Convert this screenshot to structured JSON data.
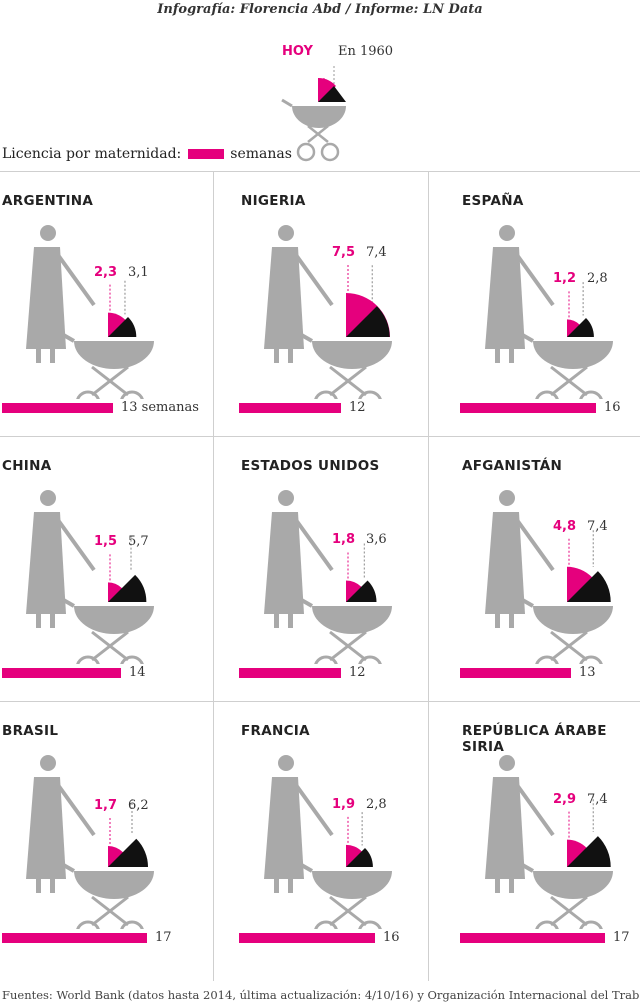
{
  "credit": "Infografía: Florencia Abd / Informe: LN Data",
  "legend": {
    "hoy": "HOY",
    "en_1960": "En 1960",
    "maternity_label": "Licencia por maternidad:",
    "weeks_label": "semanas"
  },
  "colors": {
    "accent": "#e5007d",
    "old": "#111111",
    "figure": "#a9a9a9"
  },
  "countries": [
    {
      "name": "ARGENTINA",
      "hoy": "2,3",
      "y1960": "3,1",
      "weeks": 13,
      "weeks_label": "13 semanas"
    },
    {
      "name": "NIGERIA",
      "hoy": "7,5",
      "y1960": "7,4",
      "weeks": 12,
      "weeks_label": "12"
    },
    {
      "name": "ESPAÑA",
      "hoy": "1,2",
      "y1960": "2,8",
      "weeks": 16,
      "weeks_label": "16"
    },
    {
      "name": "CHINA",
      "hoy": "1,5",
      "y1960": "5,7",
      "weeks": 14,
      "weeks_label": "14"
    },
    {
      "name": "ESTADOS UNIDOS",
      "hoy": "1,8",
      "y1960": "3,6",
      "weeks": 12,
      "weeks_label": "12"
    },
    {
      "name": "AFGANISTÁN",
      "hoy": "4,8",
      "y1960": "7,4",
      "weeks": 13,
      "weeks_label": "13"
    },
    {
      "name": "BRASIL",
      "hoy": "1,7",
      "y1960": "6,2",
      "weeks": 17,
      "weeks_label": "17"
    },
    {
      "name": "FRANCIA",
      "hoy": "1,9",
      "y1960": "2,8",
      "weeks": 16,
      "weeks_label": "16"
    },
    {
      "name": "REPÚBLICA ÁRABE SIRIA",
      "hoy": "2,9",
      "y1960": "7,4",
      "weeks": 17,
      "weeks_label": "17"
    }
  ],
  "footer": "Fuentes: World Bank (datos hasta 2014, última actualización: 4/10/16) y Organización Internacional del Trabajo"
}
